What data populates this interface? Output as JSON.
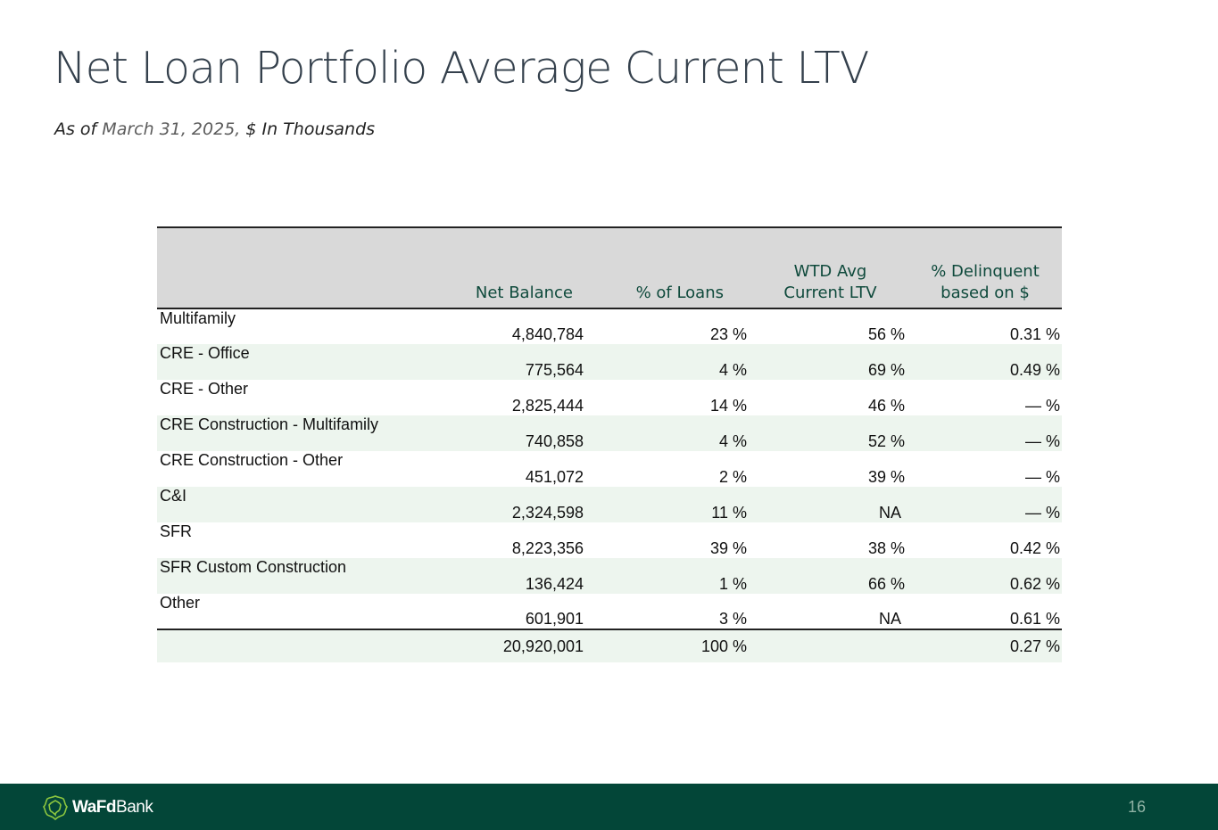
{
  "title": "Net Loan Portfolio Average Current LTV",
  "subtitle": {
    "prefix": "As of",
    "date": "March 31, 2025,",
    "suffix": "$ In Thousands"
  },
  "table": {
    "headers": [
      "",
      "Net Balance",
      "% of Loans",
      "WTD Avg\nCurrent LTV",
      "% Delinquent\nbased on $"
    ],
    "rows": [
      {
        "label": "Multifamily",
        "net_balance": "4,840,784",
        "pct_loans": "23 %",
        "ltv": "56 %",
        "delinquent": "0.31 %"
      },
      {
        "label": "CRE - Office",
        "net_balance": "775,564",
        "pct_loans": "4 %",
        "ltv": "69 %",
        "delinquent": "0.49 %"
      },
      {
        "label": "CRE - Other",
        "net_balance": "2,825,444",
        "pct_loans": "14 %",
        "ltv": "46 %",
        "delinquent": "— %"
      },
      {
        "label": "CRE Construction - Multifamily",
        "net_balance": "740,858",
        "pct_loans": "4 %",
        "ltv": "52 %",
        "delinquent": "— %"
      },
      {
        "label": "CRE Construction - Other",
        "net_balance": "451,072",
        "pct_loans": "2 %",
        "ltv": "39 %",
        "delinquent": "— %"
      },
      {
        "label": "C&I",
        "net_balance": "2,324,598",
        "pct_loans": "11 %",
        "ltv": "NA",
        "delinquent": "— %"
      },
      {
        "label": "SFR",
        "net_balance": "8,223,356",
        "pct_loans": "39 %",
        "ltv": "38 %",
        "delinquent": "0.42 %"
      },
      {
        "label": "SFR Custom Construction",
        "net_balance": "136,424",
        "pct_loans": "1 %",
        "ltv": "66 %",
        "delinquent": "0.62 %"
      },
      {
        "label": "Other",
        "net_balance": "601,901",
        "pct_loans": "3 %",
        "ltv": "NA",
        "delinquent": "0.61 %"
      }
    ],
    "total": {
      "net_balance": "20,920,001",
      "pct_loans": "100 %",
      "ltv": "",
      "delinquent": "0.27 %"
    }
  },
  "footer": {
    "brand_bold": "WaFd",
    "brand_rest": "Bank",
    "page_number": "16",
    "brand_color": "#034638"
  }
}
